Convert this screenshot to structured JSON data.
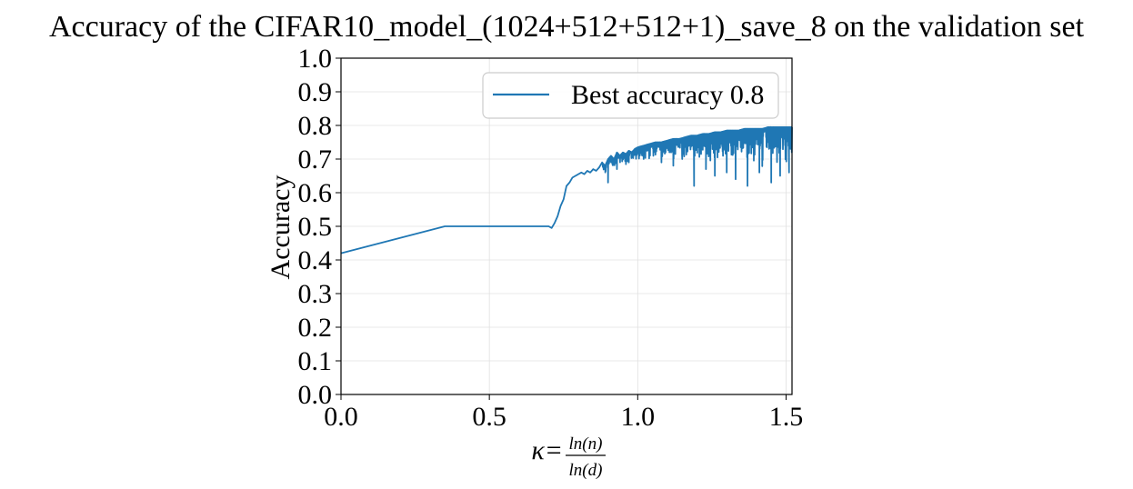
{
  "chart_data": {
    "type": "line",
    "title": "Accuracy of the CIFAR10_model_(1024+512+512+1)_save_8 on the validation set",
    "xlabel": {
      "prefix": "κ=",
      "numerator": "ln(n)",
      "denominator": "ln(d)"
    },
    "ylabel": "Accuracy",
    "xlim": [
      0.0,
      1.52
    ],
    "ylim": [
      0.0,
      1.0
    ],
    "x_ticks": [
      0.0,
      0.5,
      1.0,
      1.5
    ],
    "x_tick_labels": [
      "0.0",
      "0.5",
      "1.0",
      "1.5"
    ],
    "y_ticks": [
      0.0,
      0.1,
      0.2,
      0.3,
      0.4,
      0.5,
      0.6,
      0.7,
      0.8,
      0.9,
      1.0
    ],
    "y_tick_labels": [
      "0.0",
      "0.1",
      "0.2",
      "0.3",
      "0.4",
      "0.5",
      "0.6",
      "0.7",
      "0.8",
      "0.9",
      "1.0"
    ],
    "grid": true,
    "legend": {
      "position": "upper-right",
      "entries": [
        "Best accuracy 0.8"
      ]
    },
    "series": [
      {
        "name": "Best accuracy 0.8",
        "color": "#1f77b4",
        "x": [
          0.0,
          0.35,
          0.69,
          0.7,
          0.71,
          0.72,
          0.73,
          0.74,
          0.75,
          0.76,
          0.77,
          0.78,
          0.79,
          0.8,
          0.81,
          0.82,
          0.83,
          0.84,
          0.85,
          0.86,
          0.87,
          0.88,
          0.89,
          0.9,
          0.91,
          0.92,
          0.93,
          0.94,
          0.95,
          0.96,
          0.97,
          0.98,
          0.99,
          1.0,
          1.02,
          1.04,
          1.06,
          1.08,
          1.1,
          1.12,
          1.14,
          1.16,
          1.18,
          1.2,
          1.22,
          1.24,
          1.26,
          1.28,
          1.3,
          1.32,
          1.34,
          1.36,
          1.38,
          1.4,
          1.42,
          1.44,
          1.46,
          1.48,
          1.5,
          1.52
        ],
        "y": [
          0.42,
          0.5,
          0.5,
          0.5,
          0.495,
          0.51,
          0.53,
          0.56,
          0.58,
          0.62,
          0.63,
          0.645,
          0.65,
          0.655,
          0.66,
          0.655,
          0.665,
          0.66,
          0.67,
          0.665,
          0.675,
          0.69,
          0.68,
          0.7,
          0.71,
          0.7,
          0.72,
          0.71,
          0.72,
          0.715,
          0.725,
          0.72,
          0.73,
          0.735,
          0.74,
          0.745,
          0.75,
          0.75,
          0.755,
          0.76,
          0.76,
          0.765,
          0.77,
          0.77,
          0.775,
          0.775,
          0.78,
          0.78,
          0.785,
          0.785,
          0.785,
          0.79,
          0.79,
          0.79,
          0.79,
          0.795,
          0.795,
          0.795,
          0.795,
          0.795
        ],
        "dips": [
          {
            "x": 0.9,
            "y": 0.63
          },
          {
            "x": 0.93,
            "y": 0.67
          },
          {
            "x": 0.97,
            "y": 0.69
          },
          {
            "x": 1.02,
            "y": 0.7
          },
          {
            "x": 1.08,
            "y": 0.69
          },
          {
            "x": 1.12,
            "y": 0.68
          },
          {
            "x": 1.15,
            "y": 0.7
          },
          {
            "x": 1.19,
            "y": 0.62
          },
          {
            "x": 1.23,
            "y": 0.67
          },
          {
            "x": 1.26,
            "y": 0.65
          },
          {
            "x": 1.3,
            "y": 0.66
          },
          {
            "x": 1.33,
            "y": 0.64
          },
          {
            "x": 1.37,
            "y": 0.62
          },
          {
            "x": 1.41,
            "y": 0.66
          },
          {
            "x": 1.45,
            "y": 0.63
          },
          {
            "x": 1.48,
            "y": 0.65
          },
          {
            "x": 1.51,
            "y": 0.66
          }
        ],
        "noise_range": {
          "from_x": 0.88,
          "to_x": 1.52,
          "max_drop": 0.12
        }
      }
    ]
  }
}
